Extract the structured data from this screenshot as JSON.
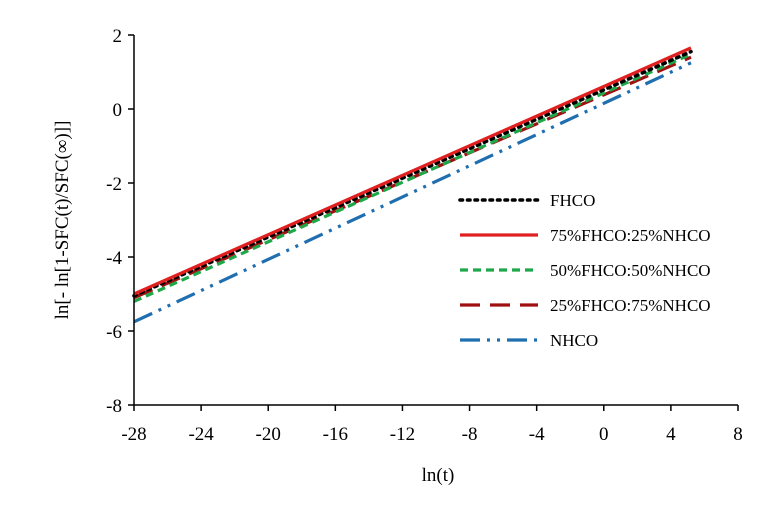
{
  "chart_data": {
    "type": "line",
    "xlabel": "ln(t)",
    "ylabel": "ln[- ln[1-SFC(t)/SFC(∞)]]",
    "xlim": [
      -28,
      8
    ],
    "ylim": [
      -8,
      2
    ],
    "x_ticks": [
      -28,
      -24,
      -20,
      -16,
      -12,
      -8,
      -4,
      0,
      4,
      8
    ],
    "y_ticks": [
      -8,
      -6,
      -4,
      -2,
      0,
      2
    ],
    "x_tick_labels": [
      "-28",
      "-24",
      "-20",
      "-16",
      "-12",
      "-8",
      "-4",
      "0",
      "4",
      "8"
    ],
    "y_tick_labels": [
      "-8",
      "-6",
      "-4",
      "-2",
      "0",
      "2"
    ],
    "grid": false,
    "legend_position": "right",
    "series": [
      {
        "name": "FHCO",
        "color": "#000000",
        "style": "dotted",
        "x": [
          -28,
          5.2
        ],
        "y": [
          -5.05,
          1.55
        ]
      },
      {
        "name": "75%FHCO:25%NHCO",
        "color": "#e02020",
        "style": "solid",
        "x": [
          -28,
          5.2
        ],
        "y": [
          -5.0,
          1.65
        ]
      },
      {
        "name": "50%FHCO:50%NHCO",
        "color": "#1fa84a",
        "style": "dashed",
        "x": [
          -28,
          5.2
        ],
        "y": [
          -5.2,
          1.48
        ]
      },
      {
        "name": "25%FHCO:75%NHCO",
        "color": "#a01010",
        "style": "long-dash",
        "x": [
          -28,
          5.2
        ],
        "y": [
          -5.1,
          1.4
        ]
      },
      {
        "name": "NHCO",
        "color": "#1f6fb0",
        "style": "dash-dot-dot",
        "x": [
          -28,
          5.2
        ],
        "y": [
          -5.75,
          1.25
        ]
      }
    ]
  }
}
